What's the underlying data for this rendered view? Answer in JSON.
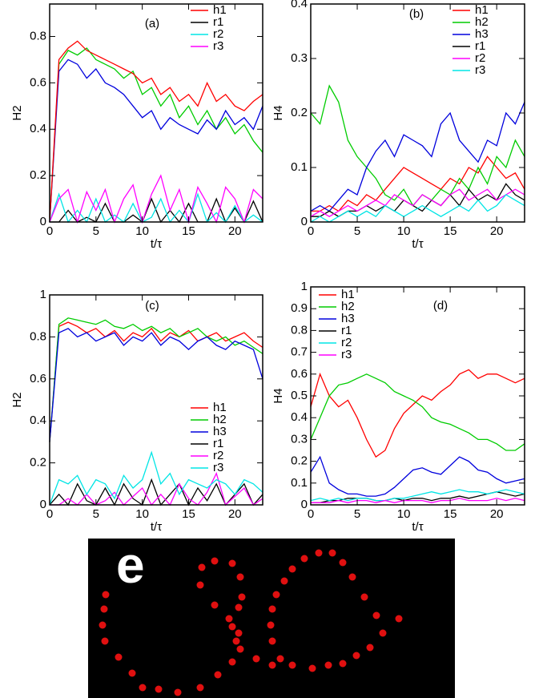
{
  "chart_data": [
    {
      "type": "line",
      "panel_label": "(a)",
      "xlabel": "t/τ",
      "ylabel": "H2",
      "legend": "upper right",
      "x": [
        0,
        1,
        2,
        3,
        4,
        5,
        6,
        7,
        8,
        9,
        10,
        11,
        12,
        13,
        14,
        15,
        16,
        17,
        18,
        19,
        20,
        21,
        22,
        23
      ],
      "xlim": [
        0,
        23
      ],
      "ylim": [
        0,
        0.94
      ],
      "xticks": [
        0,
        5,
        10,
        15,
        20
      ],
      "yticks": [
        0,
        0.2,
        0.4,
        0.6,
        0.8
      ],
      "series": [
        {
          "color": "#00cc00",
          "values": [
            0,
            0.68,
            0.74,
            0.72,
            0.75,
            0.7,
            0.68,
            0.66,
            0.62,
            0.65,
            0.55,
            0.58,
            0.5,
            0.55,
            0.45,
            0.5,
            0.42,
            0.48,
            0.4,
            0.45,
            0.38,
            0.42,
            0.35,
            0.3
          ]
        },
        {
          "color": "#0000dd",
          "values": [
            0,
            0.65,
            0.7,
            0.68,
            0.62,
            0.66,
            0.6,
            0.58,
            0.55,
            0.5,
            0.45,
            0.48,
            0.4,
            0.45,
            0.42,
            0.4,
            0.38,
            0.44,
            0.4,
            0.48,
            0.42,
            0.45,
            0.4,
            0.5
          ]
        },
        {
          "name": "h1",
          "color": "#ff0000",
          "values": [
            0,
            0.7,
            0.75,
            0.78,
            0.74,
            0.72,
            0.7,
            0.68,
            0.66,
            0.64,
            0.6,
            0.62,
            0.55,
            0.58,
            0.52,
            0.55,
            0.5,
            0.6,
            0.52,
            0.55,
            0.5,
            0.48,
            0.52,
            0.55
          ]
        },
        {
          "name": "r1",
          "color": "#000000",
          "values": [
            0,
            0,
            0.05,
            0,
            0.02,
            0,
            0.08,
            0,
            0,
            0.03,
            0,
            0.1,
            0,
            0.05,
            0,
            0.08,
            0,
            0,
            0.1,
            0,
            0.06,
            0,
            0.09,
            0
          ]
        },
        {
          "name": "r2",
          "color": "#00e5e5",
          "values": [
            0,
            0.12,
            0,
            0.05,
            0,
            0.1,
            0,
            0.03,
            0,
            0.08,
            0,
            0.02,
            0.1,
            0,
            0.05,
            0,
            0.12,
            0,
            0.04,
            0,
            0.07,
            0,
            0.03,
            0
          ]
        },
        {
          "name": "r3",
          "color": "#ff00ff",
          "values": [
            0,
            0.1,
            0.14,
            0,
            0.13,
            0.05,
            0.14,
            0,
            0.1,
            0.16,
            0,
            0.12,
            0.2,
            0.05,
            0.14,
            0,
            0.15,
            0.08,
            0,
            0.15,
            0.1,
            0,
            0.14,
            0.1
          ]
        }
      ]
    },
    {
      "type": "line",
      "panel_label": "(b)",
      "xlabel": "t/τ",
      "ylabel": "H4",
      "legend": "upper right",
      "x": [
        0,
        1,
        2,
        3,
        4,
        5,
        6,
        7,
        8,
        9,
        10,
        11,
        12,
        13,
        14,
        15,
        16,
        17,
        18,
        19,
        20,
        21,
        22,
        23
      ],
      "xlim": [
        0,
        23
      ],
      "ylim": [
        0,
        0.4
      ],
      "xticks": [
        0,
        5,
        10,
        15,
        20
      ],
      "yticks": [
        0,
        0.1,
        0.2,
        0.3,
        0.4
      ],
      "series": [
        {
          "name": "h1",
          "color": "#ff0000",
          "values": [
            0.02,
            0.02,
            0.03,
            0.02,
            0.04,
            0.03,
            0.05,
            0.04,
            0.06,
            0.08,
            0.1,
            0.09,
            0.08,
            0.07,
            0.06,
            0.08,
            0.07,
            0.1,
            0.09,
            0.12,
            0.1,
            0.08,
            0.09,
            0.06
          ]
        },
        {
          "name": "h2",
          "color": "#00cc00",
          "values": [
            0.2,
            0.18,
            0.25,
            0.22,
            0.15,
            0.12,
            0.1,
            0.08,
            0.05,
            0.04,
            0.06,
            0.03,
            0.05,
            0.04,
            0.06,
            0.05,
            0.08,
            0.06,
            0.1,
            0.07,
            0.12,
            0.1,
            0.15,
            0.12
          ]
        },
        {
          "name": "h3",
          "color": "#0000dd",
          "values": [
            0.02,
            0.03,
            0.02,
            0.04,
            0.06,
            0.05,
            0.1,
            0.13,
            0.15,
            0.12,
            0.16,
            0.15,
            0.14,
            0.12,
            0.18,
            0.2,
            0.15,
            0.13,
            0.11,
            0.15,
            0.14,
            0.2,
            0.18,
            0.22
          ]
        },
        {
          "name": "r1",
          "color": "#000000",
          "values": [
            0.01,
            0.01,
            0.02,
            0.01,
            0.02,
            0.02,
            0.03,
            0.02,
            0.03,
            0.02,
            0.04,
            0.03,
            0.02,
            0.04,
            0.03,
            0.05,
            0.03,
            0.06,
            0.04,
            0.05,
            0.04,
            0.07,
            0.05,
            0.04
          ]
        },
        {
          "name": "r2",
          "color": "#ff00ff",
          "values": [
            0.01,
            0.02,
            0.01,
            0.02,
            0.03,
            0.02,
            0.03,
            0.04,
            0.03,
            0.05,
            0.04,
            0.03,
            0.05,
            0.04,
            0.03,
            0.05,
            0.06,
            0.04,
            0.05,
            0.06,
            0.04,
            0.05,
            0.06,
            0.05
          ]
        },
        {
          "name": "r3",
          "color": "#00e5e5",
          "values": [
            0,
            0.01,
            0,
            0.01,
            0.02,
            0.01,
            0.02,
            0.01,
            0.03,
            0.02,
            0.01,
            0.02,
            0.03,
            0.02,
            0.01,
            0.02,
            0.03,
            0.02,
            0.04,
            0.02,
            0.03,
            0.05,
            0.04,
            0.03
          ]
        }
      ]
    },
    {
      "type": "line",
      "panel_label": "(c)",
      "xlabel": "t/τ",
      "ylabel": "H2",
      "legend": "center right",
      "x": [
        0,
        1,
        2,
        3,
        4,
        5,
        6,
        7,
        8,
        9,
        10,
        11,
        12,
        13,
        14,
        15,
        16,
        17,
        18,
        19,
        20,
        21,
        22,
        23
      ],
      "xlim": [
        0,
        23
      ],
      "ylim": [
        0,
        1
      ],
      "xticks": [
        0,
        5,
        10,
        15,
        20
      ],
      "yticks": [
        0,
        0.2,
        0.4,
        0.6,
        0.8,
        1
      ],
      "series": [
        {
          "name": "h1",
          "color": "#ff0000",
          "values": [
            0.3,
            0.85,
            0.87,
            0.85,
            0.82,
            0.84,
            0.8,
            0.83,
            0.78,
            0.82,
            0.8,
            0.84,
            0.78,
            0.82,
            0.8,
            0.83,
            0.78,
            0.8,
            0.82,
            0.78,
            0.8,
            0.82,
            0.78,
            0.75
          ]
        },
        {
          "name": "h2",
          "color": "#00cc00",
          "values": [
            0.3,
            0.86,
            0.89,
            0.88,
            0.87,
            0.86,
            0.88,
            0.85,
            0.84,
            0.86,
            0.83,
            0.85,
            0.82,
            0.84,
            0.8,
            0.82,
            0.84,
            0.8,
            0.78,
            0.8,
            0.76,
            0.78,
            0.75,
            0.72
          ]
        },
        {
          "name": "h3",
          "color": "#0000dd",
          "values": [
            0.3,
            0.82,
            0.84,
            0.8,
            0.82,
            0.78,
            0.8,
            0.82,
            0.76,
            0.8,
            0.78,
            0.82,
            0.76,
            0.8,
            0.78,
            0.74,
            0.78,
            0.8,
            0.76,
            0.74,
            0.78,
            0.76,
            0.74,
            0.6
          ]
        },
        {
          "name": "r1",
          "color": "#000000",
          "values": [
            0,
            0.05,
            0,
            0.1,
            0.02,
            0,
            0.08,
            0,
            0.1,
            0.03,
            0,
            0.12,
            0,
            0.05,
            0.1,
            0,
            0.08,
            0.02,
            0.1,
            0,
            0.05,
            0.1,
            0,
            0.05
          ]
        },
        {
          "name": "r2",
          "color": "#ff00ff",
          "values": [
            0,
            0,
            0.03,
            0,
            0.05,
            0,
            0.02,
            0.06,
            0,
            0.04,
            0.08,
            0,
            0.05,
            0,
            0.1,
            0.03,
            0,
            0.06,
            0.15,
            0,
            0.04,
            0.08,
            0,
            0.03
          ]
        },
        {
          "name": "r3",
          "color": "#00e5e5",
          "values": [
            0,
            0.12,
            0.1,
            0.14,
            0.05,
            0.12,
            0.1,
            0.03,
            0.14,
            0.08,
            0.12,
            0.25,
            0.1,
            0.15,
            0.05,
            0.12,
            0.1,
            0.08,
            0.12,
            0.1,
            0.05,
            0.12,
            0.1,
            0.06
          ]
        }
      ]
    },
    {
      "type": "line",
      "panel_label": "(d)",
      "xlabel": "t/τ",
      "ylabel": "H4",
      "legend": "upper left",
      "x": [
        0,
        1,
        2,
        3,
        4,
        5,
        6,
        7,
        8,
        9,
        10,
        11,
        12,
        13,
        14,
        15,
        16,
        17,
        18,
        19,
        20,
        21,
        22,
        23
      ],
      "xlim": [
        0,
        23
      ],
      "ylim": [
        0,
        1
      ],
      "xticks": [
        0,
        5,
        10,
        15,
        20
      ],
      "yticks": [
        0,
        0.1,
        0.2,
        0.3,
        0.4,
        0.5,
        0.6,
        0.7,
        0.8,
        0.9,
        1
      ],
      "series": [
        {
          "name": "h1",
          "color": "#ff0000",
          "values": [
            0.45,
            0.6,
            0.5,
            0.45,
            0.48,
            0.4,
            0.3,
            0.22,
            0.25,
            0.35,
            0.42,
            0.46,
            0.5,
            0.48,
            0.52,
            0.55,
            0.6,
            0.62,
            0.58,
            0.6,
            0.6,
            0.58,
            0.56,
            0.58
          ]
        },
        {
          "name": "h2",
          "color": "#00cc00",
          "values": [
            0.3,
            0.4,
            0.5,
            0.55,
            0.56,
            0.58,
            0.6,
            0.58,
            0.56,
            0.52,
            0.5,
            0.48,
            0.45,
            0.4,
            0.38,
            0.37,
            0.35,
            0.33,
            0.3,
            0.3,
            0.28,
            0.25,
            0.25,
            0.28
          ]
        },
        {
          "name": "h3",
          "color": "#0000dd",
          "values": [
            0.15,
            0.22,
            0.1,
            0.07,
            0.05,
            0.05,
            0.04,
            0.04,
            0.05,
            0.08,
            0.12,
            0.16,
            0.17,
            0.15,
            0.14,
            0.18,
            0.22,
            0.2,
            0.16,
            0.15,
            0.12,
            0.1,
            0.11,
            0.12
          ]
        },
        {
          "name": "r1",
          "color": "#000000",
          "values": [
            0.01,
            0.01,
            0.02,
            0.02,
            0.03,
            0.03,
            0.03,
            0.02,
            0.02,
            0.03,
            0.02,
            0.03,
            0.03,
            0.02,
            0.03,
            0.03,
            0.04,
            0.03,
            0.04,
            0.05,
            0.06,
            0.05,
            0.04,
            0.05
          ]
        },
        {
          "name": "r2",
          "color": "#00e5e5",
          "values": [
            0.02,
            0.03,
            0.02,
            0.03,
            0.02,
            0.03,
            0.03,
            0.02,
            0.02,
            0.03,
            0.03,
            0.04,
            0.05,
            0.06,
            0.05,
            0.06,
            0.07,
            0.06,
            0.06,
            0.05,
            0.06,
            0.07,
            0.06,
            0.05
          ]
        },
        {
          "name": "r3",
          "color": "#ff00ff",
          "values": [
            0.01,
            0.01,
            0.01,
            0.02,
            0.01,
            0.02,
            0.02,
            0.01,
            0.02,
            0.01,
            0.02,
            0.02,
            0.02,
            0.01,
            0.02,
            0.02,
            0.03,
            0.02,
            0.02,
            0.02,
            0.03,
            0.02,
            0.03,
            0.02
          ]
        }
      ]
    }
  ],
  "panel_e": {
    "label": "e"
  }
}
